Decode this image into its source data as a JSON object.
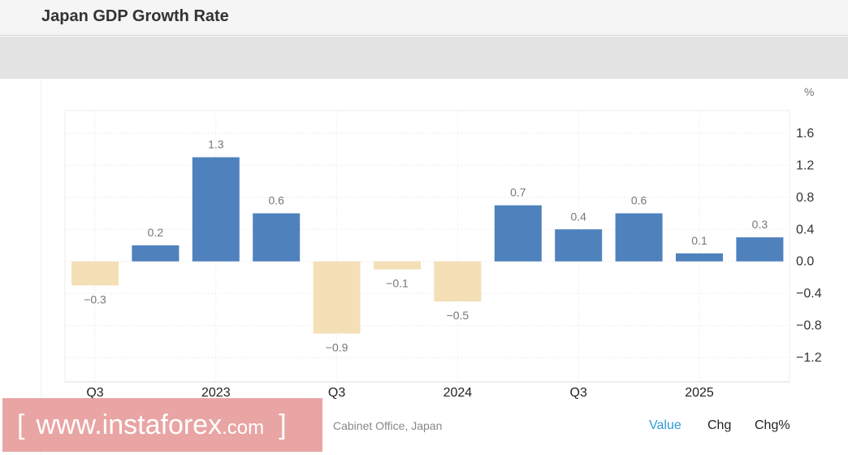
{
  "header": {
    "title": "Japan GDP Growth Rate"
  },
  "source": "Cabinet Office, Japan",
  "watermark": {
    "open": "[",
    "site": "www.instaforex",
    "tld": ".com",
    "close": "]"
  },
  "toggles": {
    "value": "Value",
    "chg": "Chg",
    "chg_pct": "Chg%"
  },
  "colors": {
    "positive": "#4f81bd",
    "negative": "#f5dfb6",
    "active_toggle": "#2e9bd6"
  },
  "chart_data": {
    "type": "bar",
    "title": "Japan GDP Growth Rate",
    "ylabel": "%",
    "categories": [
      "2022 Q3",
      "2022 Q4",
      "2023 Q1",
      "2023 Q2",
      "2023 Q3",
      "2023 Q4",
      "2024 Q1",
      "2024 Q2",
      "2024 Q3",
      "2024 Q4",
      "2025 Q1",
      "2025 Q2"
    ],
    "values": [
      -0.3,
      0.2,
      1.3,
      0.6,
      -0.9,
      -0.1,
      -0.5,
      0.7,
      0.4,
      0.6,
      0.1,
      0.3
    ],
    "data_labels": [
      "-0.3",
      "0.2",
      "1.3",
      "0.6",
      "-0.9",
      "-0.1",
      "-0.5",
      "0.7",
      "0.4",
      "0.6",
      "0.1",
      "0.3"
    ],
    "xtick_labels": [
      {
        "index": 0,
        "label": "Q3"
      },
      {
        "index": 2,
        "label": "2023"
      },
      {
        "index": 4,
        "label": "Q3"
      },
      {
        "index": 6,
        "label": "2024"
      },
      {
        "index": 8,
        "label": "Q3"
      },
      {
        "index": 10,
        "label": "2025"
      }
    ],
    "yticks": [
      1.6,
      1.2,
      0.8,
      0.4,
      0.0,
      -0.4,
      -0.8,
      -1.2
    ],
    "ytick_labels": [
      "1.6",
      "1.2",
      "0.8",
      "0.4",
      "0.0",
      "-0.4",
      "-0.8",
      "-1.2"
    ],
    "ylim": [
      -1.5,
      1.9
    ],
    "grid": true,
    "legend": "none"
  }
}
